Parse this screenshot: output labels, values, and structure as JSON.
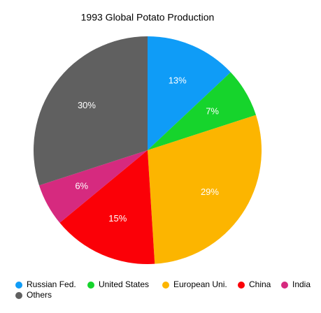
{
  "chart_data": {
    "type": "pie",
    "title": "1993 Global Potato Production",
    "categories": [
      "Russian Fed.",
      "United States",
      "European Uni.",
      "China",
      "India",
      "Others"
    ],
    "values": [
      13,
      7,
      29,
      15,
      6,
      30
    ],
    "value_labels": [
      "13%",
      "7%",
      "29%",
      "15%",
      "6%",
      "30%"
    ],
    "colors": [
      "#0f9cf7",
      "#16d42c",
      "#fcb500",
      "#fb0007",
      "#d62a7f",
      "#606060"
    ],
    "legend": "bottom"
  }
}
